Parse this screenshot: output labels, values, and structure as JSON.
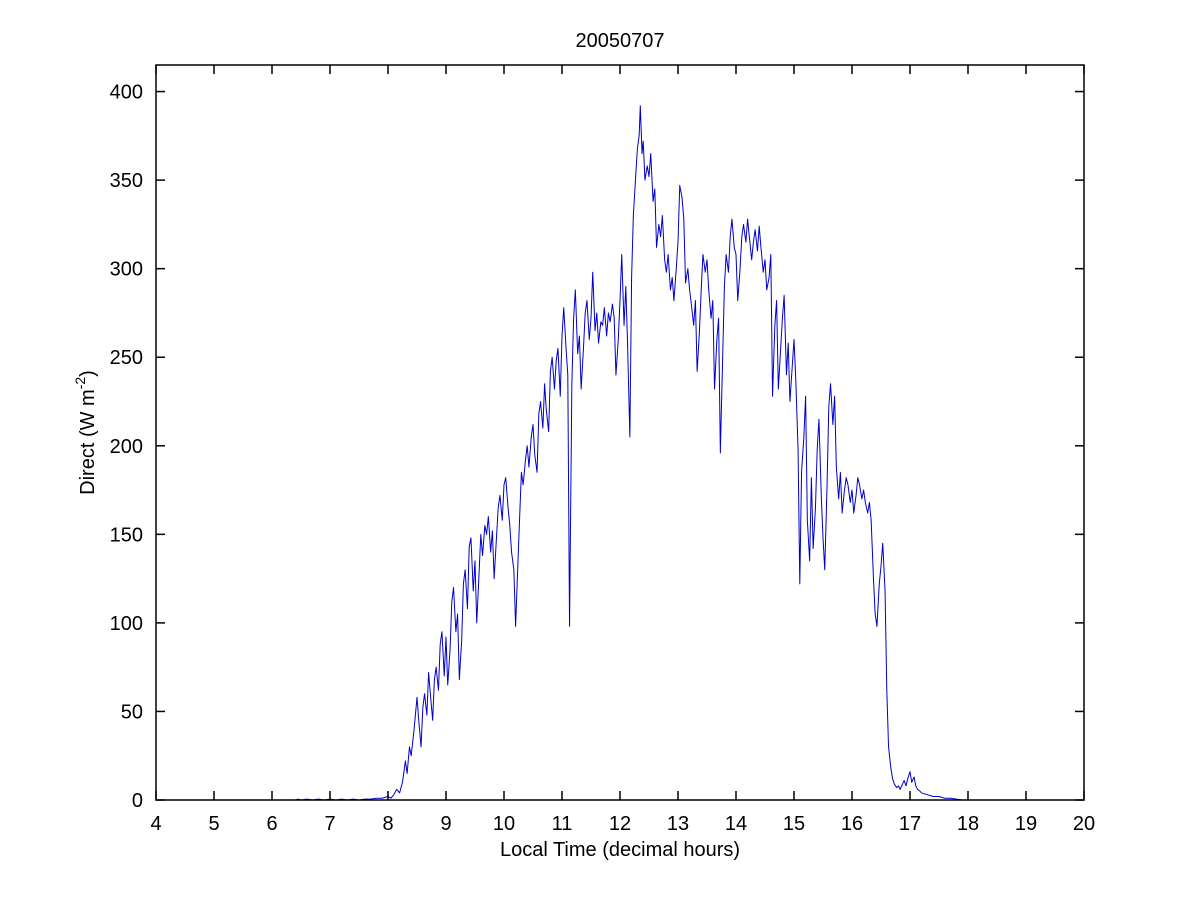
{
  "figure": {
    "background": "#ffffff"
  },
  "chart_data": {
    "type": "line",
    "title": "20050707",
    "xlabel": "Local Time (decimal hours)",
    "ylabel": {
      "text": "Direct (W m",
      "superscript": "-2",
      "suffix": ")"
    },
    "xlim": [
      4,
      20
    ],
    "ylim": [
      0,
      415
    ],
    "xticks": [
      4,
      5,
      6,
      7,
      8,
      9,
      10,
      11,
      12,
      13,
      14,
      15,
      16,
      17,
      18,
      19,
      20
    ],
    "yticks": [
      0,
      50,
      100,
      150,
      200,
      250,
      300,
      350,
      400
    ],
    "grid": false,
    "legend": null,
    "line_color": "#0000cc",
    "axis_color": "#000000",
    "points": [
      [
        6.4,
        0
      ],
      [
        6.45,
        0.5
      ],
      [
        6.5,
        0
      ],
      [
        6.6,
        0.5
      ],
      [
        6.7,
        0
      ],
      [
        6.8,
        0.5
      ],
      [
        6.9,
        0
      ],
      [
        7.0,
        0.5
      ],
      [
        7.1,
        0
      ],
      [
        7.2,
        0.5
      ],
      [
        7.3,
        0
      ],
      [
        7.4,
        0.5
      ],
      [
        7.5,
        0
      ],
      [
        7.6,
        0.5
      ],
      [
        7.7,
        0.5
      ],
      [
        7.8,
        1
      ],
      [
        7.9,
        1
      ],
      [
        7.95,
        1.5
      ],
      [
        8.0,
        2
      ],
      [
        8.05,
        1
      ],
      [
        8.1,
        3
      ],
      [
        8.15,
        6
      ],
      [
        8.2,
        4
      ],
      [
        8.25,
        10
      ],
      [
        8.3,
        22
      ],
      [
        8.33,
        15
      ],
      [
        8.37,
        30
      ],
      [
        8.4,
        25
      ],
      [
        8.45,
        40
      ],
      [
        8.5,
        58
      ],
      [
        8.53,
        45
      ],
      [
        8.57,
        30
      ],
      [
        8.6,
        52
      ],
      [
        8.63,
        60
      ],
      [
        8.67,
        48
      ],
      [
        8.7,
        72
      ],
      [
        8.73,
        60
      ],
      [
        8.77,
        45
      ],
      [
        8.8,
        68
      ],
      [
        8.83,
        75
      ],
      [
        8.87,
        62
      ],
      [
        8.9,
        88
      ],
      [
        8.93,
        95
      ],
      [
        8.97,
        70
      ],
      [
        9.0,
        92
      ],
      [
        9.03,
        65
      ],
      [
        9.07,
        85
      ],
      [
        9.1,
        112
      ],
      [
        9.13,
        120
      ],
      [
        9.17,
        95
      ],
      [
        9.2,
        105
      ],
      [
        9.23,
        68
      ],
      [
        9.27,
        90
      ],
      [
        9.3,
        122
      ],
      [
        9.33,
        130
      ],
      [
        9.37,
        108
      ],
      [
        9.4,
        143
      ],
      [
        9.43,
        148
      ],
      [
        9.47,
        118
      ],
      [
        9.5,
        135
      ],
      [
        9.53,
        100
      ],
      [
        9.57,
        128
      ],
      [
        9.6,
        150
      ],
      [
        9.63,
        138
      ],
      [
        9.67,
        155
      ],
      [
        9.7,
        150
      ],
      [
        9.73,
        160
      ],
      [
        9.77,
        140
      ],
      [
        9.8,
        152
      ],
      [
        9.83,
        125
      ],
      [
        9.87,
        148
      ],
      [
        9.9,
        165
      ],
      [
        9.93,
        172
      ],
      [
        9.97,
        158
      ],
      [
        10.0,
        178
      ],
      [
        10.03,
        182
      ],
      [
        10.07,
        165
      ],
      [
        10.1,
        155
      ],
      [
        10.13,
        140
      ],
      [
        10.17,
        130
      ],
      [
        10.2,
        98
      ],
      [
        10.23,
        125
      ],
      [
        10.27,
        160
      ],
      [
        10.3,
        185
      ],
      [
        10.33,
        178
      ],
      [
        10.37,
        192
      ],
      [
        10.4,
        200
      ],
      [
        10.43,
        188
      ],
      [
        10.47,
        205
      ],
      [
        10.5,
        212
      ],
      [
        10.53,
        195
      ],
      [
        10.57,
        185
      ],
      [
        10.6,
        218
      ],
      [
        10.63,
        225
      ],
      [
        10.67,
        210
      ],
      [
        10.7,
        235
      ],
      [
        10.73,
        220
      ],
      [
        10.77,
        208
      ],
      [
        10.8,
        242
      ],
      [
        10.83,
        250
      ],
      [
        10.87,
        232
      ],
      [
        10.9,
        248
      ],
      [
        10.93,
        255
      ],
      [
        10.97,
        228
      ],
      [
        11.0,
        262
      ],
      [
        11.03,
        278
      ],
      [
        11.07,
        255
      ],
      [
        11.1,
        240
      ],
      [
        11.13,
        98
      ],
      [
        11.17,
        235
      ],
      [
        11.2,
        272
      ],
      [
        11.23,
        288
      ],
      [
        11.27,
        252
      ],
      [
        11.3,
        262
      ],
      [
        11.33,
        232
      ],
      [
        11.37,
        255
      ],
      [
        11.4,
        275
      ],
      [
        11.43,
        282
      ],
      [
        11.47,
        260
      ],
      [
        11.5,
        272
      ],
      [
        11.53,
        298
      ],
      [
        11.57,
        265
      ],
      [
        11.6,
        275
      ],
      [
        11.63,
        258
      ],
      [
        11.67,
        270
      ],
      [
        11.7,
        268
      ],
      [
        11.73,
        278
      ],
      [
        11.77,
        262
      ],
      [
        11.8,
        275
      ],
      [
        11.83,
        270
      ],
      [
        11.87,
        280
      ],
      [
        11.9,
        272
      ],
      [
        11.93,
        240
      ],
      [
        11.97,
        260
      ],
      [
        12.0,
        282
      ],
      [
        12.03,
        308
      ],
      [
        12.07,
        268
      ],
      [
        12.1,
        290
      ],
      [
        12.13,
        258
      ],
      [
        12.17,
        205
      ],
      [
        12.2,
        295
      ],
      [
        12.23,
        330
      ],
      [
        12.27,
        352
      ],
      [
        12.3,
        368
      ],
      [
        12.33,
        375
      ],
      [
        12.35,
        392
      ],
      [
        12.38,
        365
      ],
      [
        12.4,
        372
      ],
      [
        12.43,
        350
      ],
      [
        12.47,
        358
      ],
      [
        12.5,
        352
      ],
      [
        12.53,
        365
      ],
      [
        12.57,
        338
      ],
      [
        12.6,
        345
      ],
      [
        12.63,
        312
      ],
      [
        12.67,
        325
      ],
      [
        12.7,
        318
      ],
      [
        12.73,
        330
      ],
      [
        12.77,
        305
      ],
      [
        12.8,
        298
      ],
      [
        12.83,
        308
      ],
      [
        12.87,
        288
      ],
      [
        12.9,
        295
      ],
      [
        12.93,
        282
      ],
      [
        12.97,
        300
      ],
      [
        13.0,
        315
      ],
      [
        13.03,
        347
      ],
      [
        13.07,
        340
      ],
      [
        13.1,
        328
      ],
      [
        13.13,
        292
      ],
      [
        13.17,
        300
      ],
      [
        13.2,
        288
      ],
      [
        13.23,
        280
      ],
      [
        13.27,
        268
      ],
      [
        13.3,
        282
      ],
      [
        13.33,
        242
      ],
      [
        13.37,
        265
      ],
      [
        13.4,
        288
      ],
      [
        13.43,
        308
      ],
      [
        13.47,
        298
      ],
      [
        13.5,
        305
      ],
      [
        13.53,
        288
      ],
      [
        13.57,
        272
      ],
      [
        13.6,
        282
      ],
      [
        13.63,
        232
      ],
      [
        13.67,
        260
      ],
      [
        13.7,
        272
      ],
      [
        13.73,
        196
      ],
      [
        13.77,
        250
      ],
      [
        13.8,
        290
      ],
      [
        13.83,
        308
      ],
      [
        13.87,
        298
      ],
      [
        13.9,
        318
      ],
      [
        13.93,
        328
      ],
      [
        13.97,
        312
      ],
      [
        14.0,
        308
      ],
      [
        14.03,
        282
      ],
      [
        14.07,
        300
      ],
      [
        14.1,
        318
      ],
      [
        14.13,
        325
      ],
      [
        14.17,
        315
      ],
      [
        14.2,
        328
      ],
      [
        14.23,
        318
      ],
      [
        14.27,
        305
      ],
      [
        14.3,
        315
      ],
      [
        14.33,
        322
      ],
      [
        14.37,
        310
      ],
      [
        14.4,
        324
      ],
      [
        14.43,
        312
      ],
      [
        14.47,
        298
      ],
      [
        14.5,
        305
      ],
      [
        14.53,
        288
      ],
      [
        14.57,
        295
      ],
      [
        14.6,
        308
      ],
      [
        14.63,
        228
      ],
      [
        14.67,
        268
      ],
      [
        14.7,
        282
      ],
      [
        14.73,
        232
      ],
      [
        14.77,
        255
      ],
      [
        14.8,
        272
      ],
      [
        14.83,
        285
      ],
      [
        14.87,
        240
      ],
      [
        14.9,
        258
      ],
      [
        14.93,
        225
      ],
      [
        14.97,
        245
      ],
      [
        15.0,
        260
      ],
      [
        15.03,
        238
      ],
      [
        15.07,
        198
      ],
      [
        15.1,
        122
      ],
      [
        15.13,
        185
      ],
      [
        15.17,
        205
      ],
      [
        15.2,
        228
      ],
      [
        15.23,
        158
      ],
      [
        15.27,
        135
      ],
      [
        15.3,
        182
      ],
      [
        15.33,
        142
      ],
      [
        15.37,
        165
      ],
      [
        15.4,
        198
      ],
      [
        15.43,
        215
      ],
      [
        15.47,
        172
      ],
      [
        15.5,
        148
      ],
      [
        15.53,
        130
      ],
      [
        15.57,
        178
      ],
      [
        15.6,
        222
      ],
      [
        15.63,
        235
      ],
      [
        15.67,
        212
      ],
      [
        15.7,
        228
      ],
      [
        15.73,
        188
      ],
      [
        15.77,
        170
      ],
      [
        15.8,
        185
      ],
      [
        15.83,
        162
      ],
      [
        15.87,
        175
      ],
      [
        15.9,
        182
      ],
      [
        15.93,
        178
      ],
      [
        15.97,
        168
      ],
      [
        16.0,
        175
      ],
      [
        16.03,
        162
      ],
      [
        16.07,
        172
      ],
      [
        16.1,
        182
      ],
      [
        16.13,
        178
      ],
      [
        16.17,
        170
      ],
      [
        16.2,
        175
      ],
      [
        16.23,
        168
      ],
      [
        16.27,
        162
      ],
      [
        16.3,
        168
      ],
      [
        16.33,
        158
      ],
      [
        16.37,
        125
      ],
      [
        16.4,
        105
      ],
      [
        16.43,
        98
      ],
      [
        16.47,
        122
      ],
      [
        16.5,
        132
      ],
      [
        16.53,
        145
      ],
      [
        16.57,
        118
      ],
      [
        16.6,
        62
      ],
      [
        16.63,
        30
      ],
      [
        16.67,
        18
      ],
      [
        16.7,
        12
      ],
      [
        16.73,
        9
      ],
      [
        16.77,
        7
      ],
      [
        16.8,
        8
      ],
      [
        16.83,
        6
      ],
      [
        16.87,
        9
      ],
      [
        16.9,
        11
      ],
      [
        16.93,
        8
      ],
      [
        16.97,
        13
      ],
      [
        17.0,
        16
      ],
      [
        17.03,
        10
      ],
      [
        17.07,
        13
      ],
      [
        17.1,
        8
      ],
      [
        17.13,
        6
      ],
      [
        17.17,
        5
      ],
      [
        17.2,
        4
      ],
      [
        17.3,
        3
      ],
      [
        17.4,
        2
      ],
      [
        17.5,
        2
      ],
      [
        17.6,
        1
      ],
      [
        17.7,
        1
      ],
      [
        17.8,
        0.5
      ],
      [
        17.9,
        0
      ],
      [
        18.0,
        0
      ]
    ]
  }
}
